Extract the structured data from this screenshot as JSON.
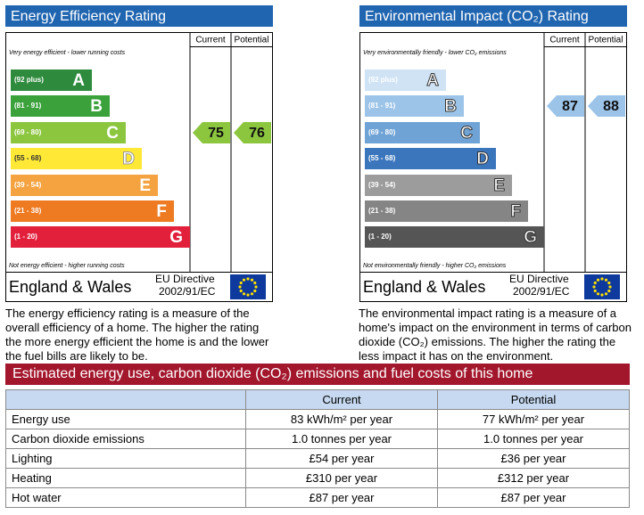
{
  "energy_efficiency": {
    "title": "Energy Efficiency Rating",
    "columns": [
      "Current",
      "Potential"
    ],
    "top_note": "Very energy efficient - lower running costs",
    "bottom_note": "Not energy efficient - higher running costs",
    "bands": [
      {
        "range": "(92 plus)",
        "letter": "A"
      },
      {
        "range": "(81 - 91)",
        "letter": "B"
      },
      {
        "range": "(69 - 80)",
        "letter": "C"
      },
      {
        "range": "(55 - 68)",
        "letter": "D"
      },
      {
        "range": "(39 - 54)",
        "letter": "E"
      },
      {
        "range": "(21 - 38)",
        "letter": "F"
      },
      {
        "range": "(1 - 20)",
        "letter": "G"
      }
    ],
    "current": 75,
    "potential": 76,
    "region": "England & Wales",
    "directive": [
      "EU Directive",
      "2002/91/EC"
    ],
    "description": "The energy efficiency rating is a measure of the overall efficiency of a home. The higher the rating the more energy efficient the home is and the lower the fuel bills are likely to be."
  },
  "environmental_impact": {
    "title": "Environmental Impact (CO₂) Rating",
    "columns": [
      "Current",
      "Potential"
    ],
    "top_note": "Very environmentally friendly - lower CO₂ emissions",
    "bottom_note": "Not environmentally friendly - higher CO₂ emissions",
    "bands": [
      {
        "range": "(92 plus)",
        "letter": "A"
      },
      {
        "range": "(81 - 91)",
        "letter": "B"
      },
      {
        "range": "(69 - 80)",
        "letter": "C"
      },
      {
        "range": "(55 - 68)",
        "letter": "D"
      },
      {
        "range": "(39 - 54)",
        "letter": "E"
      },
      {
        "range": "(21 - 38)",
        "letter": "F"
      },
      {
        "range": "(1 - 20)",
        "letter": "G"
      }
    ],
    "current": 87,
    "potential": 88,
    "region": "England & Wales",
    "directive": [
      "EU Directive",
      "2002/91/EC"
    ],
    "description": "The environmental impact rating is a measure of a home's impact on the environment in terms of carbon dioxide (CO₂) emissions. The higher the rating the less impact it has on the environment."
  },
  "costs": {
    "title": "Estimated energy use, carbon dioxide (CO₂) emissions and fuel costs of this home",
    "header": [
      "Current",
      "Potential"
    ],
    "rows": [
      [
        "Energy use",
        "83 kWh/m² per year",
        "77 kWh/m² per year"
      ],
      [
        "Carbon dioxide emissions",
        "1.0 tonnes per year",
        "1.0 tonnes per year"
      ],
      [
        "Lighting",
        "£54 per year",
        "£36 per year"
      ],
      [
        "Heating",
        "£310 per year",
        "£312 per year"
      ],
      [
        "Hot water",
        "£87 per year",
        "£87 per year"
      ]
    ]
  }
}
